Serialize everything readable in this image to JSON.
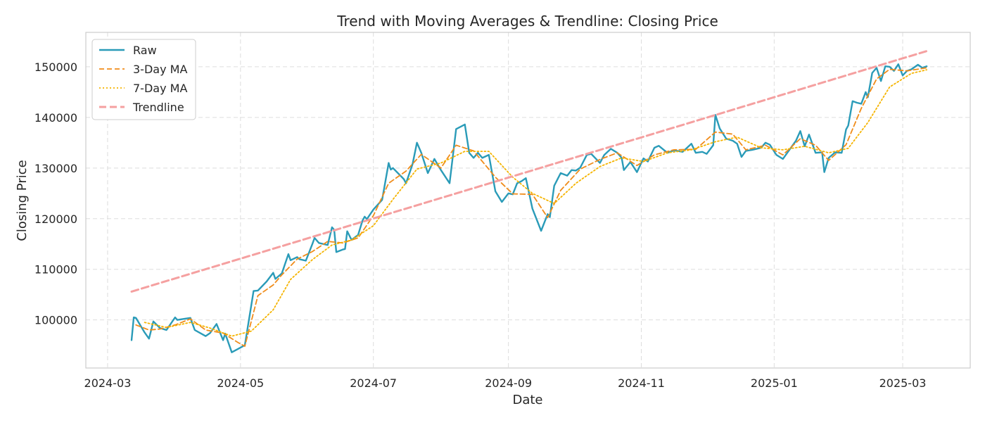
{
  "chart_data": {
    "type": "line",
    "title": "Trend with Moving Averages & Trendline: Closing Price",
    "xlabel": "Date",
    "ylabel": "Closing Price",
    "x_ticks": [
      "2024-03",
      "2024-05",
      "2024-07",
      "2024-09",
      "2024-11",
      "2025-01",
      "2025-03"
    ],
    "y_ticks": [
      100000,
      110000,
      120000,
      130000,
      140000,
      150000
    ],
    "ylim": [
      90500,
      156800
    ],
    "xlim": [
      "2024-02-20",
      "2025-04-01"
    ],
    "grid": true,
    "legend_position": "top-left",
    "series": [
      {
        "name": "Raw",
        "style": "solid",
        "color": "#2a9bb8",
        "points": [
          [
            "2024-03-12",
            96000
          ],
          [
            "2024-03-13",
            100500
          ],
          [
            "2024-03-14",
            100400
          ],
          [
            "2024-03-18",
            97500
          ],
          [
            "2024-03-20",
            96300
          ],
          [
            "2024-03-22",
            99700
          ],
          [
            "2024-03-25",
            98400
          ],
          [
            "2024-03-28",
            98000
          ],
          [
            "2024-04-01",
            100500
          ],
          [
            "2024-04-02",
            100000
          ],
          [
            "2024-04-05",
            100200
          ],
          [
            "2024-04-08",
            100400
          ],
          [
            "2024-04-10",
            98000
          ],
          [
            "2024-04-15",
            96800
          ],
          [
            "2024-04-17",
            97400
          ],
          [
            "2024-04-20",
            99200
          ],
          [
            "2024-04-23",
            96000
          ],
          [
            "2024-04-24",
            97300
          ],
          [
            "2024-04-27",
            93600
          ],
          [
            "2024-04-30",
            94300
          ],
          [
            "2024-05-03",
            95000
          ],
          [
            "2024-05-06",
            103000
          ],
          [
            "2024-05-07",
            105700
          ],
          [
            "2024-05-09",
            105800
          ],
          [
            "2024-05-13",
            107600
          ],
          [
            "2024-05-16",
            109300
          ],
          [
            "2024-05-17",
            108100
          ],
          [
            "2024-05-20",
            109200
          ],
          [
            "2024-05-23",
            113000
          ],
          [
            "2024-05-24",
            111800
          ],
          [
            "2024-05-27",
            112400
          ],
          [
            "2024-05-28",
            112000
          ],
          [
            "2024-05-31",
            111700
          ],
          [
            "2024-06-03",
            115000
          ],
          [
            "2024-06-04",
            116200
          ],
          [
            "2024-06-06",
            115200
          ],
          [
            "2024-06-10",
            114800
          ],
          [
            "2024-06-12",
            118300
          ],
          [
            "2024-06-13",
            117800
          ],
          [
            "2024-06-14",
            113400
          ],
          [
            "2024-06-17",
            113900
          ],
          [
            "2024-06-18",
            114000
          ],
          [
            "2024-06-19",
            117500
          ],
          [
            "2024-06-21",
            115800
          ],
          [
            "2024-06-24",
            116800
          ],
          [
            "2024-06-26",
            119600
          ],
          [
            "2024-06-27",
            120400
          ],
          [
            "2024-06-28",
            119900
          ],
          [
            "2024-07-01",
            121800
          ],
          [
            "2024-07-05",
            123700
          ],
          [
            "2024-07-08",
            131000
          ],
          [
            "2024-07-09",
            129700
          ],
          [
            "2024-07-10",
            130000
          ],
          [
            "2024-07-15",
            127800
          ],
          [
            "2024-07-16",
            127000
          ],
          [
            "2024-07-19",
            130800
          ],
          [
            "2024-07-21",
            135000
          ],
          [
            "2024-07-23",
            133000
          ],
          [
            "2024-07-26",
            129000
          ],
          [
            "2024-07-29",
            131800
          ],
          [
            "2024-08-01",
            129600
          ],
          [
            "2024-08-05",
            127000
          ],
          [
            "2024-08-08",
            137700
          ],
          [
            "2024-08-12",
            138600
          ],
          [
            "2024-08-14",
            133000
          ],
          [
            "2024-08-16",
            132000
          ],
          [
            "2024-08-18",
            133000
          ],
          [
            "2024-08-20",
            132000
          ],
          [
            "2024-08-23",
            132600
          ],
          [
            "2024-08-26",
            125400
          ],
          [
            "2024-08-29",
            123300
          ],
          [
            "2024-09-01",
            125000
          ],
          [
            "2024-09-03",
            124800
          ],
          [
            "2024-09-05",
            127000
          ],
          [
            "2024-09-07",
            127400
          ],
          [
            "2024-09-09",
            128000
          ],
          [
            "2024-09-12",
            122000
          ],
          [
            "2024-09-16",
            117600
          ],
          [
            "2024-09-19",
            120900
          ],
          [
            "2024-09-20",
            120300
          ],
          [
            "2024-09-22",
            126500
          ],
          [
            "2024-09-25",
            129000
          ],
          [
            "2024-09-28",
            128500
          ],
          [
            "2024-09-30",
            129600
          ],
          [
            "2024-10-02",
            129500
          ],
          [
            "2024-10-04",
            130100
          ],
          [
            "2024-10-07",
            132600
          ],
          [
            "2024-10-09",
            132800
          ],
          [
            "2024-10-13",
            131000
          ],
          [
            "2024-10-15",
            132600
          ],
          [
            "2024-10-18",
            133800
          ],
          [
            "2024-10-21",
            133000
          ],
          [
            "2024-10-23",
            132000
          ],
          [
            "2024-10-24",
            129600
          ],
          [
            "2024-10-27",
            131200
          ],
          [
            "2024-10-30",
            129200
          ],
          [
            "2024-11-02",
            131900
          ],
          [
            "2024-11-04",
            131300
          ],
          [
            "2024-11-07",
            134000
          ],
          [
            "2024-11-09",
            134400
          ],
          [
            "2024-11-13",
            133000
          ],
          [
            "2024-11-16",
            133500
          ],
          [
            "2024-11-20",
            133200
          ],
          [
            "2024-11-24",
            134800
          ],
          [
            "2024-11-26",
            133000
          ],
          [
            "2024-11-29",
            133200
          ],
          [
            "2024-12-01",
            132800
          ],
          [
            "2024-12-04",
            134500
          ],
          [
            "2024-12-05",
            140500
          ],
          [
            "2024-12-07",
            137800
          ],
          [
            "2024-12-10",
            135800
          ],
          [
            "2024-12-13",
            135400
          ],
          [
            "2024-12-15",
            134800
          ],
          [
            "2024-12-17",
            132200
          ],
          [
            "2024-12-19",
            133400
          ],
          [
            "2024-12-22",
            133600
          ],
          [
            "2024-12-26",
            134000
          ],
          [
            "2024-12-28",
            135000
          ],
          [
            "2024-12-30",
            134600
          ],
          [
            "2025-01-02",
            132600
          ],
          [
            "2025-01-05",
            131800
          ],
          [
            "2025-01-08",
            133600
          ],
          [
            "2025-01-11",
            135400
          ],
          [
            "2025-01-13",
            137300
          ],
          [
            "2025-01-15",
            134300
          ],
          [
            "2025-01-17",
            136600
          ],
          [
            "2025-01-20",
            133000
          ],
          [
            "2025-01-23",
            133100
          ],
          [
            "2025-01-24",
            129200
          ],
          [
            "2025-01-26",
            132000
          ],
          [
            "2025-01-29",
            133100
          ],
          [
            "2025-02-01",
            133000
          ],
          [
            "2025-02-03",
            137600
          ],
          [
            "2025-02-04",
            138400
          ],
          [
            "2025-02-06",
            143200
          ],
          [
            "2025-02-08",
            142900
          ],
          [
            "2025-02-10",
            142700
          ],
          [
            "2025-02-12",
            145000
          ],
          [
            "2025-02-13",
            144000
          ],
          [
            "2025-02-15",
            148800
          ],
          [
            "2025-02-17",
            149800
          ],
          [
            "2025-02-19",
            147200
          ],
          [
            "2025-02-21",
            150100
          ],
          [
            "2025-02-23",
            150000
          ],
          [
            "2025-02-25",
            149200
          ],
          [
            "2025-02-27",
            150500
          ],
          [
            "2025-03-01",
            148300
          ],
          [
            "2025-03-03",
            149200
          ],
          [
            "2025-03-05",
            149500
          ],
          [
            "2025-03-08",
            150400
          ],
          [
            "2025-03-10",
            149800
          ],
          [
            "2025-03-12",
            150100
          ]
        ]
      },
      {
        "name": "3-Day MA",
        "style": "dashed",
        "color": "#f08c1a",
        "points": [
          [
            "2024-03-14",
            99000
          ],
          [
            "2024-03-20",
            98000
          ],
          [
            "2024-03-25",
            98200
          ],
          [
            "2024-04-01",
            99000
          ],
          [
            "2024-04-08",
            100200
          ],
          [
            "2024-04-15",
            98000
          ],
          [
            "2024-04-23",
            97400
          ],
          [
            "2024-04-30",
            95500
          ],
          [
            "2024-05-03",
            94800
          ],
          [
            "2024-05-09",
            104800
          ],
          [
            "2024-05-16",
            106900
          ],
          [
            "2024-05-20",
            108900
          ],
          [
            "2024-05-27",
            112000
          ],
          [
            "2024-06-03",
            113500
          ],
          [
            "2024-06-10",
            115500
          ],
          [
            "2024-06-17",
            115200
          ],
          [
            "2024-06-24",
            116200
          ],
          [
            "2024-07-01",
            120600
          ],
          [
            "2024-07-08",
            127000
          ],
          [
            "2024-07-16",
            129400
          ],
          [
            "2024-07-23",
            132700
          ],
          [
            "2024-08-01",
            130000
          ],
          [
            "2024-08-08",
            134500
          ],
          [
            "2024-08-16",
            133400
          ],
          [
            "2024-08-26",
            128200
          ],
          [
            "2024-09-03",
            124900
          ],
          [
            "2024-09-12",
            124800
          ],
          [
            "2024-09-19",
            120200
          ],
          [
            "2024-09-25",
            125600
          ],
          [
            "2024-10-04",
            129800
          ],
          [
            "2024-10-13",
            131700
          ],
          [
            "2024-10-21",
            133000
          ],
          [
            "2024-10-30",
            130500
          ],
          [
            "2024-11-07",
            132600
          ],
          [
            "2024-11-16",
            133600
          ],
          [
            "2024-11-26",
            133700
          ],
          [
            "2024-12-05",
            137100
          ],
          [
            "2024-12-13",
            136700
          ],
          [
            "2024-12-19",
            133600
          ],
          [
            "2024-12-28",
            134500
          ],
          [
            "2025-01-05",
            132600
          ],
          [
            "2025-01-13",
            135800
          ],
          [
            "2025-01-20",
            134500
          ],
          [
            "2025-01-26",
            131500
          ],
          [
            "2025-02-03",
            134600
          ],
          [
            "2025-02-10",
            141800
          ],
          [
            "2025-02-17",
            147600
          ],
          [
            "2025-02-23",
            149500
          ],
          [
            "2025-03-03",
            149200
          ],
          [
            "2025-03-12",
            149800
          ]
        ]
      },
      {
        "name": "7-Day MA",
        "style": "dotted",
        "color": "#f5b400",
        "points": [
          [
            "2024-03-18",
            99500
          ],
          [
            "2024-03-28",
            98500
          ],
          [
            "2024-04-08",
            99500
          ],
          [
            "2024-04-17",
            98400
          ],
          [
            "2024-04-27",
            96800
          ],
          [
            "2024-05-06",
            97800
          ],
          [
            "2024-05-16",
            102000
          ],
          [
            "2024-05-24",
            108000
          ],
          [
            "2024-06-03",
            111900
          ],
          [
            "2024-06-12",
            114800
          ],
          [
            "2024-06-21",
            115800
          ],
          [
            "2024-07-01",
            118600
          ],
          [
            "2024-07-10",
            123800
          ],
          [
            "2024-07-21",
            129800
          ],
          [
            "2024-08-01",
            131000
          ],
          [
            "2024-08-12",
            133300
          ],
          [
            "2024-08-23",
            133300
          ],
          [
            "2024-09-03",
            128200
          ],
          [
            "2024-09-12",
            125000
          ],
          [
            "2024-09-22",
            123000
          ],
          [
            "2024-10-02",
            127000
          ],
          [
            "2024-10-13",
            130300
          ],
          [
            "2024-10-23",
            132000
          ],
          [
            "2024-11-02",
            131300
          ],
          [
            "2024-11-13",
            133000
          ],
          [
            "2024-11-24",
            133600
          ],
          [
            "2024-12-05",
            135200
          ],
          [
            "2024-12-15",
            136100
          ],
          [
            "2024-12-26",
            134000
          ],
          [
            "2025-01-05",
            133600
          ],
          [
            "2025-01-15",
            134300
          ],
          [
            "2025-01-26",
            133000
          ],
          [
            "2025-02-04",
            133900
          ],
          [
            "2025-02-13",
            139000
          ],
          [
            "2025-02-23",
            146000
          ],
          [
            "2025-03-05",
            148700
          ],
          [
            "2025-03-12",
            149400
          ]
        ]
      },
      {
        "name": "Trendline",
        "style": "dashed",
        "color": "#f5a0a0",
        "points": [
          [
            "2024-03-12",
            105600
          ],
          [
            "2025-03-12",
            153100
          ]
        ]
      }
    ]
  }
}
